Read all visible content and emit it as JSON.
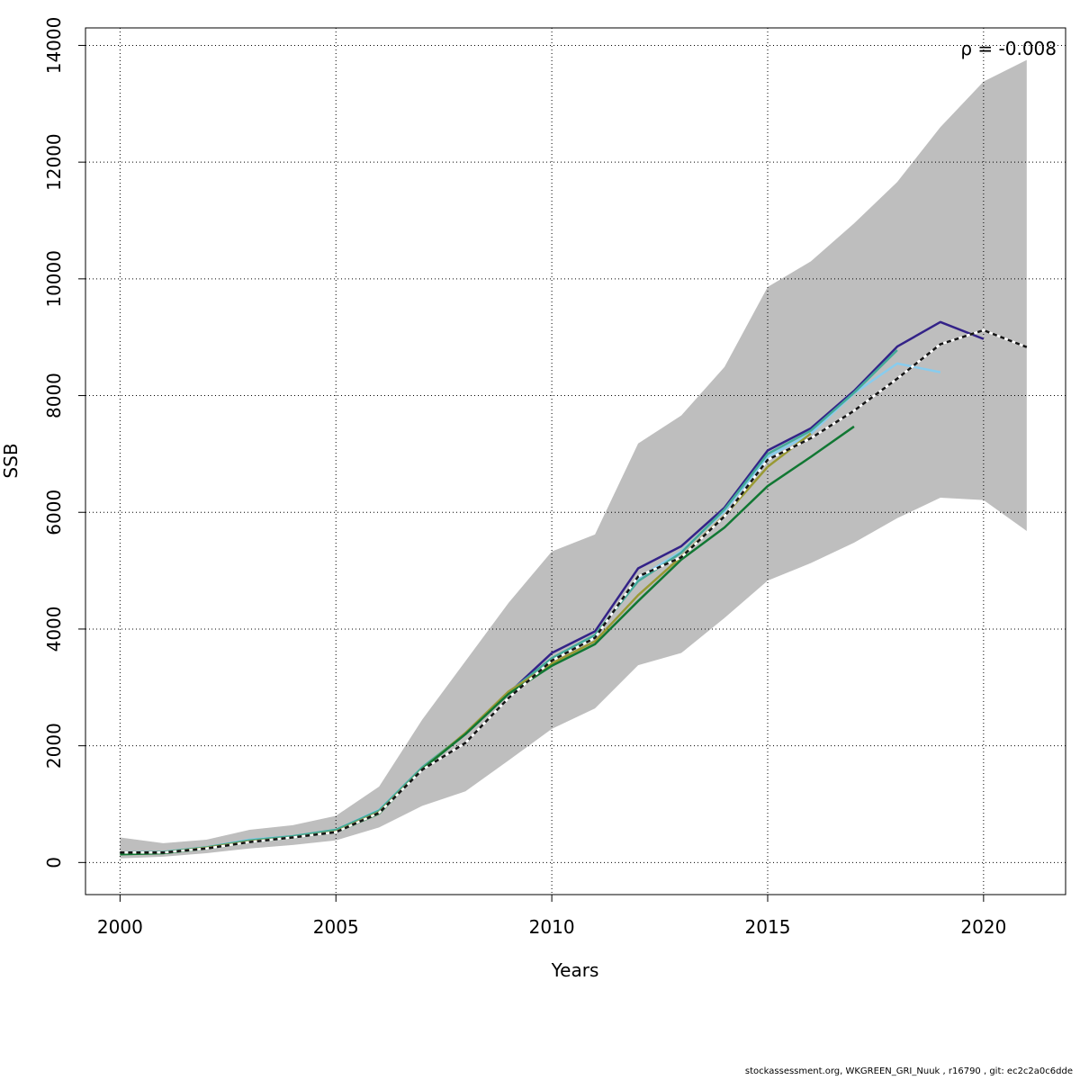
{
  "chart_data": {
    "type": "line",
    "title": "",
    "xlabel": "Years",
    "ylabel": "SSB",
    "xlim": [
      1999.2,
      2021.9
    ],
    "ylim": [
      -550,
      14300
    ],
    "x_ticks": [
      2000,
      2005,
      2010,
      2015,
      2020
    ],
    "y_ticks": [
      0,
      2000,
      4000,
      6000,
      8000,
      10000,
      12000,
      14000
    ],
    "grid": true,
    "annotation": "ρ = -0.008",
    "confidence_band": {
      "years": [
        2000,
        2001,
        2002,
        2003,
        2004,
        2005,
        2006,
        2007,
        2008,
        2009,
        2010,
        2011,
        2012,
        2013,
        2014,
        2015,
        2016,
        2017,
        2018,
        2019,
        2020,
        2021
      ],
      "upper": [
        430,
        330,
        390,
        560,
        640,
        800,
        1300,
        2450,
        3450,
        4450,
        5330,
        5620,
        7180,
        7660,
        8490,
        9860,
        10300,
        10950,
        11660,
        12600,
        13380,
        13750
      ],
      "lower": [
        70,
        100,
        160,
        240,
        300,
        380,
        600,
        970,
        1220,
        1750,
        2290,
        2640,
        3380,
        3590,
        4190,
        4830,
        5130,
        5480,
        5900,
        6250,
        6210,
        5680
      ],
      "color": "#bebebe"
    },
    "series": [
      {
        "color": "#141414",
        "style": "dashed",
        "years": [
          2000,
          2001,
          2002,
          2003,
          2004,
          2005,
          2006,
          2007,
          2008,
          2009,
          2010,
          2011,
          2012,
          2013,
          2014,
          2015,
          2016,
          2017,
          2018,
          2019,
          2020,
          2021
        ],
        "values": [
          170,
          170,
          240,
          350,
          430,
          520,
          850,
          1590,
          2050,
          2820,
          3460,
          3850,
          4900,
          5230,
          5930,
          6900,
          7270,
          7740,
          8290,
          8880,
          9120,
          8830
        ]
      },
      {
        "color": "#332288",
        "style": "solid",
        "years": [
          2000,
          2001,
          2002,
          2003,
          2004,
          2005,
          2006,
          2007,
          2008,
          2009,
          2010,
          2011,
          2012,
          2013,
          2014,
          2015,
          2016,
          2017,
          2018,
          2019,
          2020
        ],
        "values": [
          170,
          170,
          250,
          370,
          440,
          550,
          880,
          1620,
          2200,
          2900,
          3590,
          3960,
          5040,
          5420,
          6080,
          7060,
          7440,
          8080,
          8840,
          9260,
          8970
        ]
      },
      {
        "color": "#88ccee",
        "style": "solid",
        "years": [
          2000,
          2001,
          2002,
          2003,
          2004,
          2005,
          2006,
          2007,
          2008,
          2009,
          2010,
          2011,
          2012,
          2013,
          2014,
          2015,
          2016,
          2017,
          2018,
          2019
        ],
        "values": [
          170,
          180,
          260,
          390,
          450,
          560,
          900,
          1630,
          2210,
          2920,
          3480,
          3880,
          4870,
          5330,
          6020,
          6950,
          7350,
          8040,
          8550,
          8400
        ]
      },
      {
        "color": "#44aa99",
        "style": "solid",
        "years": [
          2000,
          2001,
          2002,
          2003,
          2004,
          2005,
          2006,
          2007,
          2008,
          2009,
          2010,
          2011,
          2012,
          2013,
          2014,
          2015,
          2016,
          2017,
          2018
        ],
        "values": [
          170,
          180,
          260,
          380,
          450,
          560,
          890,
          1630,
          2210,
          2910,
          3500,
          3900,
          4820,
          5310,
          6050,
          7000,
          7400,
          8050,
          8780
        ]
      },
      {
        "color": "#999933",
        "style": "solid",
        "years": [
          2000,
          2001,
          2002,
          2003,
          2004,
          2005,
          2006,
          2007,
          2008,
          2009,
          2010,
          2011,
          2012,
          2013,
          2014,
          2015,
          2016
        ],
        "values": [
          160,
          170,
          250,
          360,
          430,
          530,
          860,
          1600,
          2220,
          2930,
          3410,
          3790,
          4580,
          5240,
          5940,
          6780,
          7350
        ]
      },
      {
        "color": "#117733",
        "style": "solid",
        "years": [
          2000,
          2001,
          2002,
          2003,
          2004,
          2005,
          2006,
          2007,
          2008,
          2009,
          2010,
          2011,
          2012,
          2013,
          2014,
          2015,
          2016,
          2017
        ],
        "values": [
          140,
          160,
          240,
          350,
          430,
          520,
          840,
          1600,
          2200,
          2890,
          3370,
          3740,
          4480,
          5190,
          5740,
          6450,
          6950,
          7470
        ]
      }
    ]
  },
  "footer": "stockassessment.org, WKGREEN_GRI_Nuuk  , r16790 , git: ec2c2a0c6dde"
}
